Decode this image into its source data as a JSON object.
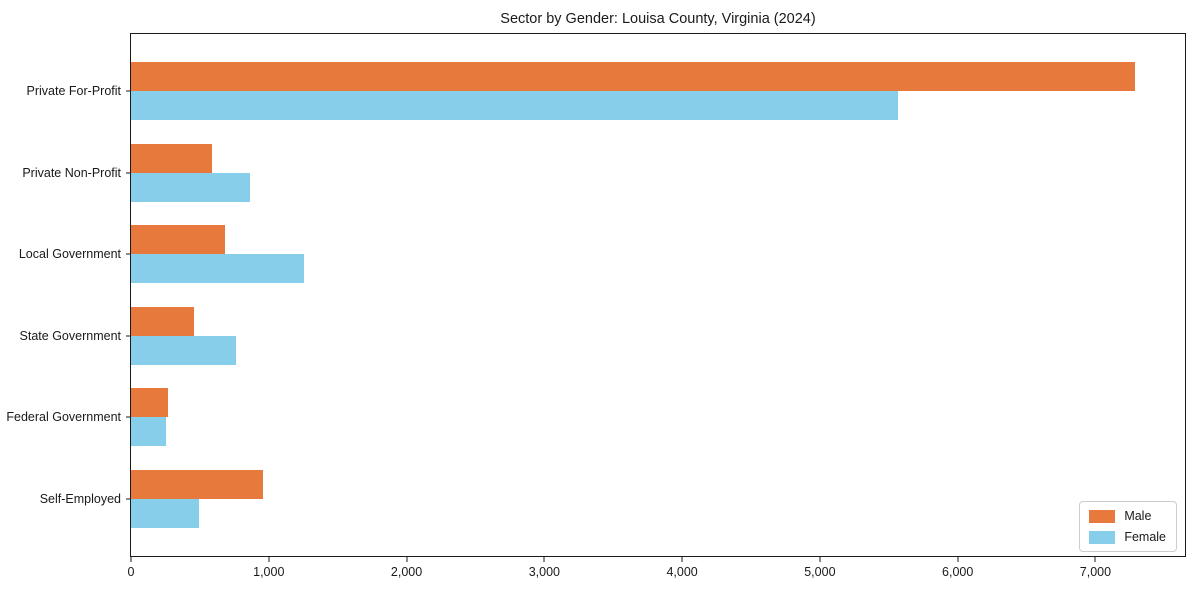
{
  "chart_data": {
    "type": "bar",
    "orientation": "horizontal",
    "title": "Sector by Gender: Louisa County, Virginia (2024)",
    "categories": [
      "Private For-Profit",
      "Private Non-Profit",
      "Local Government",
      "State Government",
      "Federal Government",
      "Self-Employed"
    ],
    "series": [
      {
        "name": "Male",
        "color": "#E8793D",
        "values": [
          7285,
          585,
          680,
          455,
          265,
          960
        ]
      },
      {
        "name": "Female",
        "color": "#87CEEB",
        "values": [
          5570,
          865,
          1255,
          765,
          255,
          490
        ]
      }
    ],
    "xlim": [
      0,
      7650
    ],
    "xticks": [
      0,
      1000,
      2000,
      3000,
      4000,
      5000,
      6000,
      7000
    ],
    "xtick_labels": [
      "0",
      "1,000",
      "2,000",
      "3,000",
      "4,000",
      "5,000",
      "6,000",
      "7,000"
    ],
    "xlabel": "",
    "ylabel": "",
    "grid": false,
    "legend_position": "lower right",
    "plot_background": "#ffffff",
    "spine_color": "#1a1a1a"
  }
}
